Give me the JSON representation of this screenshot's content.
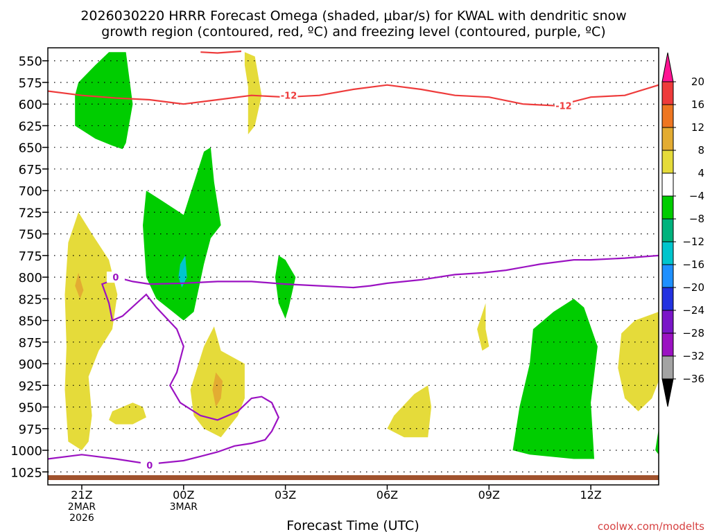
{
  "chart_data": {
    "type": "heatmap",
    "title_line1": "2026030220 HRRR Forecast Omega (shaded, μbar/s) for KWAL with dendritic snow",
    "title_line2": "growth region (contoured, red, ºC) and freezing level (contoured, purple, ºC)",
    "xlabel": "Forecast Time (UTC)",
    "credit": "coolwx.com/modelts",
    "x_range_hours": [
      -1,
      17
    ],
    "y_range_mb": [
      535,
      1040
    ],
    "y_scale": "pressure (hPa), increasing downward",
    "x_ticks": [
      {
        "h": 0,
        "lines": [
          "21Z",
          "2MAR",
          "2026"
        ]
      },
      {
        "h": 3,
        "lines": [
          "00Z",
          "3MAR"
        ]
      },
      {
        "h": 6,
        "lines": [
          "03Z"
        ]
      },
      {
        "h": 9,
        "lines": [
          "06Z"
        ]
      },
      {
        "h": 12,
        "lines": [
          "09Z"
        ]
      },
      {
        "h": 15,
        "lines": [
          "12Z"
        ]
      }
    ],
    "y_ticks": [
      "550",
      "575",
      "600",
      "625",
      "650",
      "675",
      "700",
      "725",
      "750",
      "775",
      "800",
      "825",
      "850",
      "875",
      "900",
      "925",
      "950",
      "975",
      "1000",
      "1025"
    ],
    "colorbar": {
      "labels": [
        "20",
        "16",
        "12",
        "8",
        "4",
        "−4",
        "−8",
        "−12",
        "−16",
        "−20",
        "−24",
        "−28",
        "−32",
        "−36"
      ],
      "colors": [
        "#ff1493",
        "#ee3b3b",
        "#ee7621",
        "#e3ac32",
        "#e5db3a",
        "#ffffff",
        "#00cd00",
        "#00b37d",
        "#00c5cd",
        "#1e90ff",
        "#2232e0",
        "#7a16c8",
        "#9b12c2",
        "#a3a3a3",
        "#000000"
      ]
    },
    "omega_regions": [
      {
        "color": "#00cd00",
        "pts": [
          [
            0.4,
            555
          ],
          [
            0.8,
            540
          ],
          [
            1.3,
            540
          ],
          [
            1.5,
            600
          ],
          [
            1.3,
            645
          ],
          [
            1.2,
            652
          ],
          [
            0.9,
            648
          ],
          [
            0.4,
            640
          ],
          [
            -0.2,
            625
          ],
          [
            -0.2,
            590
          ],
          [
            -0.1,
            575
          ]
        ]
      },
      {
        "color": "#00cd00",
        "pts": [
          [
            1.9,
            700
          ],
          [
            2.3,
            710
          ],
          [
            3.0,
            728
          ],
          [
            3.6,
            655
          ],
          [
            3.8,
            650
          ],
          [
            3.9,
            690
          ],
          [
            4.1,
            740
          ],
          [
            3.8,
            755
          ],
          [
            3.6,
            785
          ],
          [
            3.3,
            840
          ],
          [
            3.0,
            850
          ],
          [
            2.2,
            825
          ],
          [
            1.9,
            800
          ],
          [
            1.8,
            740
          ]
        ]
      },
      {
        "color": "#00c5cd",
        "pts": [
          [
            2.9,
            785
          ],
          [
            3.05,
            775
          ],
          [
            3.1,
            800
          ],
          [
            2.95,
            812
          ],
          [
            2.85,
            800
          ]
        ]
      },
      {
        "color": "#00cd00",
        "pts": [
          [
            5.8,
            775
          ],
          [
            6.0,
            780
          ],
          [
            6.3,
            800
          ],
          [
            6.1,
            835
          ],
          [
            6.0,
            848
          ],
          [
            5.8,
            830
          ],
          [
            5.7,
            800
          ]
        ]
      },
      {
        "color": "#00cd00",
        "pts": [
          [
            13.3,
            860
          ],
          [
            13.9,
            840
          ],
          [
            14.5,
            825
          ],
          [
            14.8,
            835
          ],
          [
            15.2,
            880
          ],
          [
            15.0,
            945
          ],
          [
            15.1,
            1010
          ],
          [
            14.5,
            1010
          ],
          [
            13.2,
            1005
          ],
          [
            12.7,
            1000
          ],
          [
            12.9,
            950
          ],
          [
            13.2,
            900
          ]
        ]
      },
      {
        "color": "#00cd00",
        "pts": [
          [
            17.0,
            975
          ],
          [
            17.1,
            985
          ],
          [
            17.1,
            1010
          ],
          [
            16.9,
            1000
          ]
        ]
      },
      {
        "color": "#e5db3a",
        "pts": [
          [
            -0.1,
            725
          ],
          [
            0.3,
            750
          ],
          [
            0.8,
            780
          ],
          [
            1.05,
            820
          ],
          [
            0.9,
            860
          ],
          [
            0.5,
            885
          ],
          [
            0.2,
            915
          ],
          [
            0.3,
            960
          ],
          [
            0.2,
            990
          ],
          [
            0.0,
            1000
          ],
          [
            -0.4,
            990
          ],
          [
            -0.5,
            930
          ],
          [
            -0.45,
            880
          ],
          [
            -0.5,
            820
          ],
          [
            -0.4,
            760
          ]
        ]
      },
      {
        "color": "#e5db3a",
        "pts": [
          [
            0.9,
            955
          ],
          [
            1.5,
            945
          ],
          [
            1.8,
            950
          ],
          [
            1.9,
            962
          ],
          [
            1.5,
            970
          ],
          [
            1.0,
            970
          ],
          [
            0.8,
            965
          ]
        ]
      },
      {
        "color": "#e5db3a",
        "pts": [
          [
            4.8,
            540
          ],
          [
            5.1,
            545
          ],
          [
            5.3,
            590
          ],
          [
            5.1,
            625
          ],
          [
            4.9,
            635
          ],
          [
            4.9,
            580
          ],
          [
            4.8,
            555
          ]
        ]
      },
      {
        "color": "#e5db3a",
        "pts": [
          [
            4.1,
            885
          ],
          [
            4.8,
            900
          ],
          [
            4.8,
            940
          ],
          [
            4.6,
            960
          ],
          [
            4.1,
            985
          ],
          [
            3.6,
            975
          ],
          [
            3.3,
            960
          ],
          [
            3.2,
            930
          ],
          [
            3.6,
            880
          ],
          [
            3.9,
            857
          ]
        ]
      },
      {
        "color": "#e5db3a",
        "pts": [
          [
            9.2,
            960
          ],
          [
            9.8,
            935
          ],
          [
            10.2,
            925
          ],
          [
            10.3,
            950
          ],
          [
            10.2,
            985
          ],
          [
            9.5,
            985
          ],
          [
            9.0,
            975
          ]
        ]
      },
      {
        "color": "#e5db3a",
        "pts": [
          [
            11.9,
            860
          ],
          [
            12.0,
            880
          ],
          [
            11.8,
            885
          ],
          [
            11.65,
            860
          ],
          [
            11.9,
            830
          ]
        ]
      },
      {
        "color": "#e5db3a",
        "pts": [
          [
            16.3,
            850
          ],
          [
            17.0,
            840
          ],
          [
            17.1,
            880
          ],
          [
            17.0,
            920
          ],
          [
            16.8,
            940
          ],
          [
            16.4,
            955
          ],
          [
            16.0,
            940
          ],
          [
            15.8,
            905
          ],
          [
            15.9,
            865
          ]
        ]
      },
      {
        "color": "#e3ac32",
        "pts": [
          [
            -0.1,
            795
          ],
          [
            0.05,
            815
          ],
          [
            -0.05,
            825
          ],
          [
            -0.2,
            810
          ]
        ]
      },
      {
        "color": "#e3ac32",
        "pts": [
          [
            3.95,
            910
          ],
          [
            4.15,
            920
          ],
          [
            4.1,
            940
          ],
          [
            3.95,
            950
          ],
          [
            3.85,
            930
          ]
        ]
      }
    ],
    "dgz_contour": {
      "label": "-12",
      "color": "#ee3b3b",
      "lines": [
        [
          [
            -1,
            585
          ],
          [
            0,
            590
          ],
          [
            1,
            593
          ],
          [
            2,
            595
          ],
          [
            3,
            600
          ],
          [
            4,
            595
          ],
          [
            5,
            590
          ],
          [
            6,
            592
          ],
          [
            7,
            590
          ],
          [
            8,
            583
          ],
          [
            9,
            578
          ],
          [
            10,
            583
          ],
          [
            11,
            590
          ],
          [
            12,
            592
          ],
          [
            13,
            600
          ],
          [
            14,
            602
          ],
          [
            15,
            592
          ],
          [
            16,
            590
          ],
          [
            17,
            578
          ]
        ],
        [
          [
            3.5,
            540
          ],
          [
            4.0,
            541
          ],
          [
            4.7,
            539
          ]
        ]
      ],
      "labels_at": [
        [
          6.1,
          590
        ],
        [
          14.2,
          602
        ]
      ]
    },
    "freezing_contour": {
      "label": "0",
      "color": "#9b12c2",
      "lines": [
        [
          [
            1.0,
            800
          ],
          [
            1.5,
            805
          ],
          [
            2,
            808
          ],
          [
            3,
            807
          ],
          [
            4,
            805
          ],
          [
            5,
            805
          ],
          [
            6,
            808
          ],
          [
            7,
            810
          ],
          [
            8,
            812
          ],
          [
            8.5,
            810
          ],
          [
            9,
            807
          ],
          [
            10,
            803
          ],
          [
            11,
            797
          ],
          [
            11.8,
            795
          ],
          [
            12.5,
            792
          ],
          [
            13.5,
            785
          ],
          [
            14.5,
            780
          ],
          [
            15,
            780
          ],
          [
            16,
            778
          ],
          [
            17,
            775
          ]
        ],
        [
          [
            0.8,
            805
          ],
          [
            0.6,
            808
          ],
          [
            0.8,
            830
          ],
          [
            0.9,
            850
          ],
          [
            1.2,
            845
          ],
          [
            1.9,
            820
          ],
          [
            2.2,
            835
          ],
          [
            2.8,
            860
          ],
          [
            3.0,
            880
          ],
          [
            2.8,
            910
          ],
          [
            2.6,
            925
          ],
          [
            2.9,
            945
          ],
          [
            3.5,
            960
          ],
          [
            4.0,
            965
          ],
          [
            4.6,
            955
          ],
          [
            5.0,
            940
          ],
          [
            5.3,
            938
          ],
          [
            5.6,
            945
          ],
          [
            5.8,
            962
          ],
          [
            5.6,
            978
          ],
          [
            5.4,
            988
          ],
          [
            5.0,
            992
          ],
          [
            4.5,
            995
          ],
          [
            4.0,
            1002
          ],
          [
            3.5,
            1007
          ],
          [
            3.0,
            1012
          ],
          [
            2.0,
            1016
          ],
          [
            1.0,
            1010
          ],
          [
            0,
            1005
          ],
          [
            -1,
            1010
          ]
        ]
      ],
      "labels_at": [
        [
          1.0,
          800
        ],
        [
          2.0,
          1017
        ]
      ]
    },
    "terrain_color": "#a0522d"
  }
}
